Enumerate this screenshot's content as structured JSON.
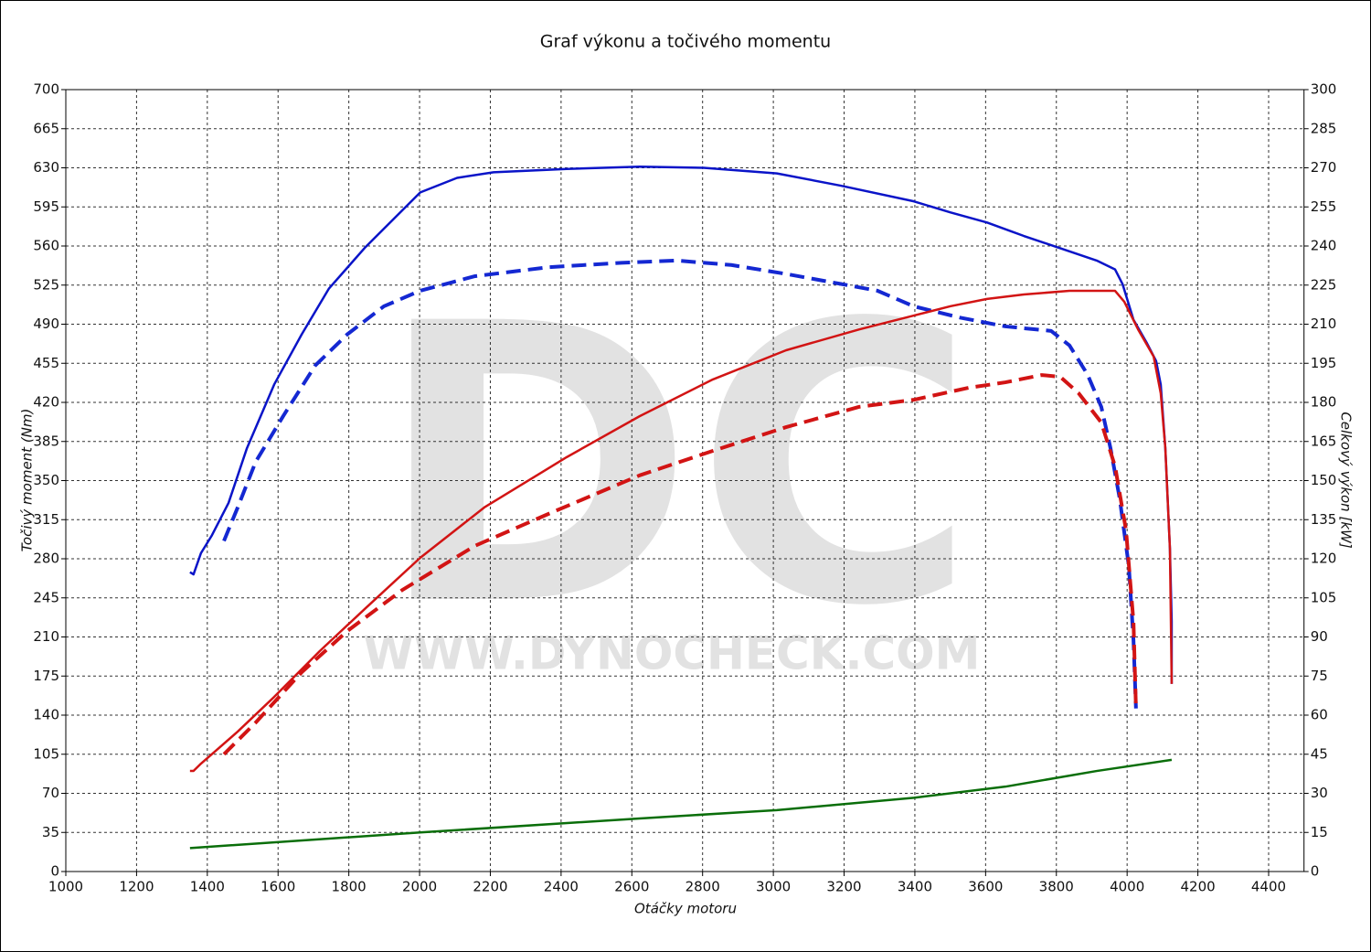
{
  "chart_data": {
    "type": "line",
    "title": "Graf výkonu a točivého momentu",
    "xlabel": "Otáčky motoru",
    "ylabel": "Točivý moment (Nm)",
    "y2label": "Celkový výkon [kW]",
    "watermark": "DC",
    "watermark_url": "WWW.DYNOCHECK.COM",
    "xlim": [
      1000,
      4500
    ],
    "xticks": [
      1000,
      1200,
      1400,
      1600,
      1800,
      2000,
      2200,
      2400,
      2600,
      2800,
      3000,
      3200,
      3400,
      3600,
      3800,
      4000,
      4200,
      4400
    ],
    "ylim": [
      0,
      700
    ],
    "yticks": [
      0,
      35,
      70,
      105,
      140,
      175,
      210,
      245,
      280,
      315,
      350,
      385,
      420,
      455,
      490,
      525,
      560,
      595,
      630,
      665,
      700
    ],
    "y2lim": [
      0,
      300
    ],
    "y2ticks": [
      0,
      15,
      30,
      45,
      60,
      75,
      90,
      105,
      120,
      135,
      150,
      165,
      180,
      195,
      210,
      225,
      240,
      255,
      270,
      285,
      300
    ],
    "grid": true,
    "series": [
      {
        "color": "#0a14c8",
        "style": "solid",
        "x": [
          1351,
          1361,
          1382,
          1413,
          1460,
          1512,
          1589,
          1667,
          1744,
          1847,
          2002,
          2106,
          2209,
          2416,
          2622,
          2803,
          3010,
          3191,
          3397,
          3501,
          3604,
          3708,
          3811,
          3914,
          3966,
          3987,
          4018,
          4056,
          4082,
          4095,
          4108,
          4121,
          4126,
          4126
        ],
        "values": [
          268,
          266,
          285,
          301,
          330,
          379,
          436,
          481,
          522,
          559,
          608,
          621,
          626,
          629,
          631,
          630,
          625,
          614,
          600,
          590,
          581,
          569,
          558,
          547,
          539,
          526,
          494,
          473,
          457,
          436,
          379,
          289,
          224,
          168
        ]
      },
      {
        "color": "#1428d2",
        "style": "dashed",
        "x": [
          1447,
          1486,
          1537,
          1615,
          1705,
          1796,
          1899,
          2002,
          2157,
          2364,
          2571,
          2726,
          2881,
          3036,
          3191,
          3294,
          3397,
          3526,
          3656,
          3785,
          3837,
          3888,
          3927,
          3953,
          3979,
          4005,
          4018,
          4025
        ],
        "values": [
          296,
          326,
          367,
          408,
          453,
          481,
          506,
          520,
          533,
          541,
          545,
          547,
          543,
          535,
          526,
          520,
          506,
          496,
          488,
          484,
          471,
          445,
          416,
          379,
          334,
          273,
          207,
          146
        ]
      },
      {
        "color": "#d21414",
        "style": "solid",
        "axis": "y2",
        "x": [
          1351,
          1361,
          1382,
          1421,
          1486,
          1589,
          1718,
          1847,
          2002,
          2183,
          2416,
          2622,
          2829,
          3036,
          3243,
          3397,
          3501,
          3604,
          3708,
          3837,
          3966,
          3992,
          4031,
          4075,
          4095,
          4108,
          4121,
          4126
        ],
        "values": [
          38.6,
          38.6,
          41.4,
          46,
          53.7,
          67,
          84.6,
          101,
          120.4,
          139.7,
          159,
          174.7,
          188.8,
          200,
          208,
          213.3,
          216.9,
          219.7,
          221.4,
          222.8,
          222.8,
          218.6,
          208,
          197.6,
          183.5,
          162.5,
          123.9,
          72
        ]
      },
      {
        "color": "#d21414",
        "style": "dashed",
        "axis": "y2",
        "x": [
          1447,
          1537,
          1667,
          1796,
          1951,
          2157,
          2364,
          2622,
          2829,
          3036,
          3243,
          3397,
          3552,
          3656,
          3759,
          3811,
          3863,
          3927,
          3966,
          3997,
          4018,
          4025
        ],
        "values": [
          45,
          57.2,
          76.5,
          92.3,
          108,
          125,
          137.2,
          152,
          161.4,
          170.5,
          178.3,
          181,
          185.6,
          187.7,
          190.5,
          189.8,
          183.5,
          172.3,
          155.4,
          130.9,
          95.8,
          62.5
        ]
      },
      {
        "color": "#0a6e0a",
        "style": "solid",
        "x": [
          1351,
          2002,
          2622,
          3010,
          3397,
          3656,
          3914,
          4126
        ],
        "values": [
          21,
          35,
          47.5,
          55,
          66,
          76,
          90,
          100
        ]
      }
    ]
  }
}
